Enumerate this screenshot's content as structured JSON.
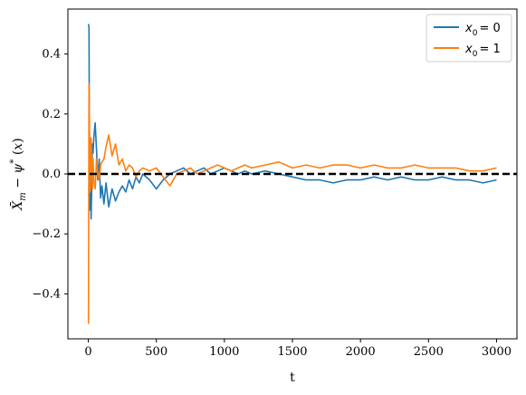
{
  "chart_data": {
    "type": "line",
    "title": "",
    "xlabel": "t",
    "ylabel": "X̄_m − ψ*(x)",
    "xlim": [
      -150,
      3150
    ],
    "ylim": [
      -0.55,
      0.55
    ],
    "x_ticks": [
      0,
      500,
      1000,
      1500,
      2000,
      2500,
      3000
    ],
    "x_tick_labels": [
      "0",
      "500",
      "1000",
      "1500",
      "2000",
      "2500",
      "3000"
    ],
    "y_ticks": [
      -0.4,
      -0.2,
      0.0,
      0.2,
      0.4
    ],
    "y_tick_labels": [
      "−0.4",
      "−0.2",
      "0.0",
      "0.2",
      "0.4"
    ],
    "reference_line": {
      "y": 0.0,
      "style": "dashed",
      "color": "#000000"
    },
    "grid": false,
    "legend_position": "top-right",
    "series": [
      {
        "name": "x0 = 0",
        "legend_sub": "0",
        "legend_suffix": "= 0",
        "color": "#1f77b4",
        "x": [
          1,
          5,
          10,
          15,
          20,
          25,
          30,
          35,
          40,
          50,
          60,
          70,
          80,
          90,
          100,
          115,
          130,
          150,
          175,
          200,
          225,
          250,
          275,
          300,
          325,
          350,
          375,
          400,
          450,
          500,
          550,
          600,
          650,
          700,
          750,
          800,
          850,
          900,
          950,
          1000,
          1050,
          1100,
          1150,
          1200,
          1300,
          1400,
          1500,
          1600,
          1700,
          1800,
          1900,
          2000,
          2100,
          2200,
          2300,
          2400,
          2500,
          2600,
          2700,
          2800,
          2900,
          3000
        ],
        "y": [
          0.5,
          0.49,
          -0.12,
          0.02,
          -0.15,
          -0.05,
          0.1,
          0.07,
          0.12,
          0.17,
          0.08,
          -0.02,
          0.05,
          -0.08,
          -0.04,
          -0.1,
          -0.03,
          -0.11,
          -0.05,
          -0.09,
          -0.06,
          -0.04,
          -0.06,
          -0.02,
          -0.05,
          -0.01,
          -0.03,
          0.0,
          -0.02,
          -0.05,
          -0.02,
          0.0,
          0.01,
          0.02,
          0.0,
          0.01,
          0.02,
          0.0,
          0.01,
          0.02,
          0.01,
          0.0,
          0.01,
          0.0,
          0.01,
          0.0,
          -0.01,
          -0.02,
          -0.02,
          -0.03,
          -0.02,
          -0.02,
          -0.01,
          -0.02,
          -0.01,
          -0.02,
          -0.02,
          -0.01,
          -0.02,
          -0.02,
          -0.03,
          -0.02
        ]
      },
      {
        "name": "x0 = 1",
        "legend_sub": "0",
        "legend_suffix": "= 1",
        "color": "#ff7f0e",
        "x": [
          1,
          5,
          10,
          15,
          20,
          25,
          30,
          35,
          40,
          50,
          60,
          70,
          80,
          90,
          100,
          115,
          130,
          150,
          175,
          200,
          225,
          250,
          275,
          300,
          325,
          350,
          375,
          400,
          450,
          500,
          550,
          600,
          650,
          700,
          750,
          800,
          850,
          900,
          950,
          1000,
          1050,
          1100,
          1150,
          1200,
          1300,
          1400,
          1500,
          1600,
          1700,
          1800,
          1900,
          2000,
          2100,
          2200,
          2300,
          2400,
          2500,
          2600,
          2700,
          2800,
          2900,
          3000
        ],
        "y": [
          -0.5,
          0.3,
          0.12,
          -0.06,
          0.12,
          0.06,
          -0.05,
          0.05,
          -0.02,
          -0.05,
          0.05,
          0.0,
          -0.02,
          0.03,
          0.04,
          0.05,
          0.09,
          0.13,
          0.06,
          0.1,
          0.03,
          0.05,
          0.01,
          0.03,
          0.02,
          -0.01,
          0.01,
          0.02,
          0.01,
          0.02,
          -0.01,
          -0.04,
          0.0,
          0.01,
          0.02,
          0.0,
          0.01,
          0.02,
          0.03,
          0.02,
          0.01,
          0.02,
          0.03,
          0.02,
          0.03,
          0.04,
          0.02,
          0.03,
          0.02,
          0.03,
          0.03,
          0.02,
          0.03,
          0.02,
          0.02,
          0.03,
          0.02,
          0.02,
          0.02,
          0.01,
          0.01,
          0.02
        ]
      }
    ]
  }
}
